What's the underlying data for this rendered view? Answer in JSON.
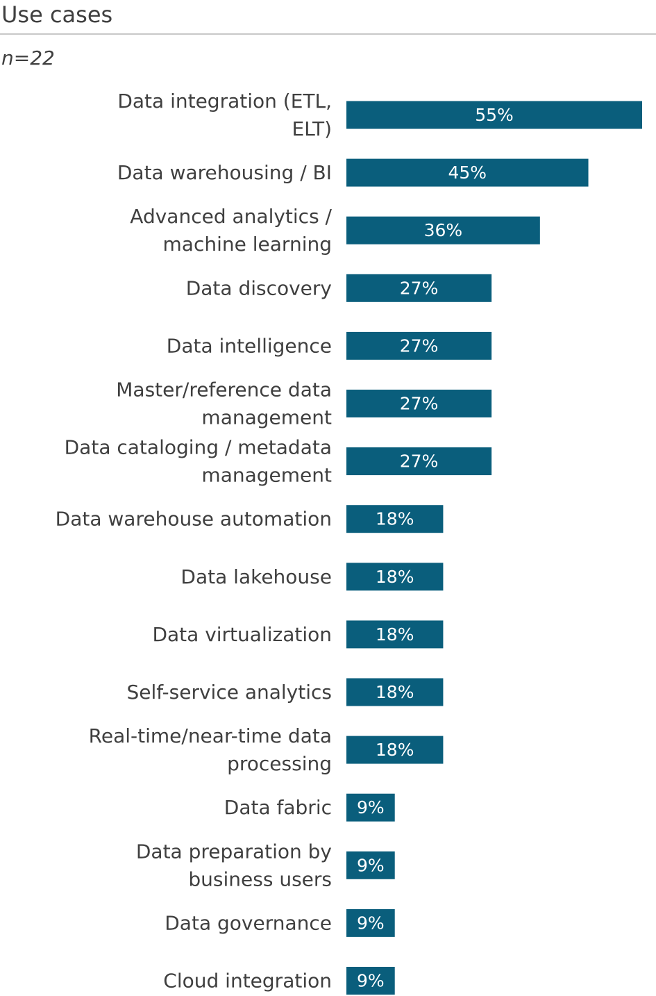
{
  "title": "Use cases",
  "sample_size": "n=22",
  "colors": {
    "bar": "#0a5e7c",
    "text": "#3f3f3f",
    "rule": "#c8c8c8"
  },
  "chart_data": {
    "type": "bar",
    "orientation": "horizontal",
    "categories": [
      [
        "Data integration (ETL,",
        "ELT)"
      ],
      [
        "Data warehousing / BI"
      ],
      [
        "Advanced analytics /",
        "machine learning"
      ],
      [
        "Data discovery"
      ],
      [
        "Data intelligence"
      ],
      [
        "Master/reference data",
        "management"
      ],
      [
        "Data cataloging / metadata",
        "management"
      ],
      [
        "Data warehouse automation"
      ],
      [
        "Data lakehouse"
      ],
      [
        "Data virtualization"
      ],
      [
        "Self-service analytics"
      ],
      [
        "Real-time/near-time data",
        "processing"
      ],
      [
        "Data fabric"
      ],
      [
        "Data preparation by",
        "business users"
      ],
      [
        "Data governance"
      ],
      [
        "Cloud integration"
      ]
    ],
    "values": [
      55,
      45,
      36,
      27,
      27,
      27,
      27,
      18,
      18,
      18,
      18,
      18,
      9,
      9,
      9,
      9
    ],
    "value_labels": [
      "55%",
      "45%",
      "36%",
      "27%",
      "27%",
      "27%",
      "27%",
      "18%",
      "18%",
      "18%",
      "18%",
      "18%",
      "9%",
      "9%",
      "9%",
      "9%"
    ],
    "unit": "%",
    "xlim": [
      0,
      55
    ],
    "grid": false,
    "legend": "none"
  }
}
